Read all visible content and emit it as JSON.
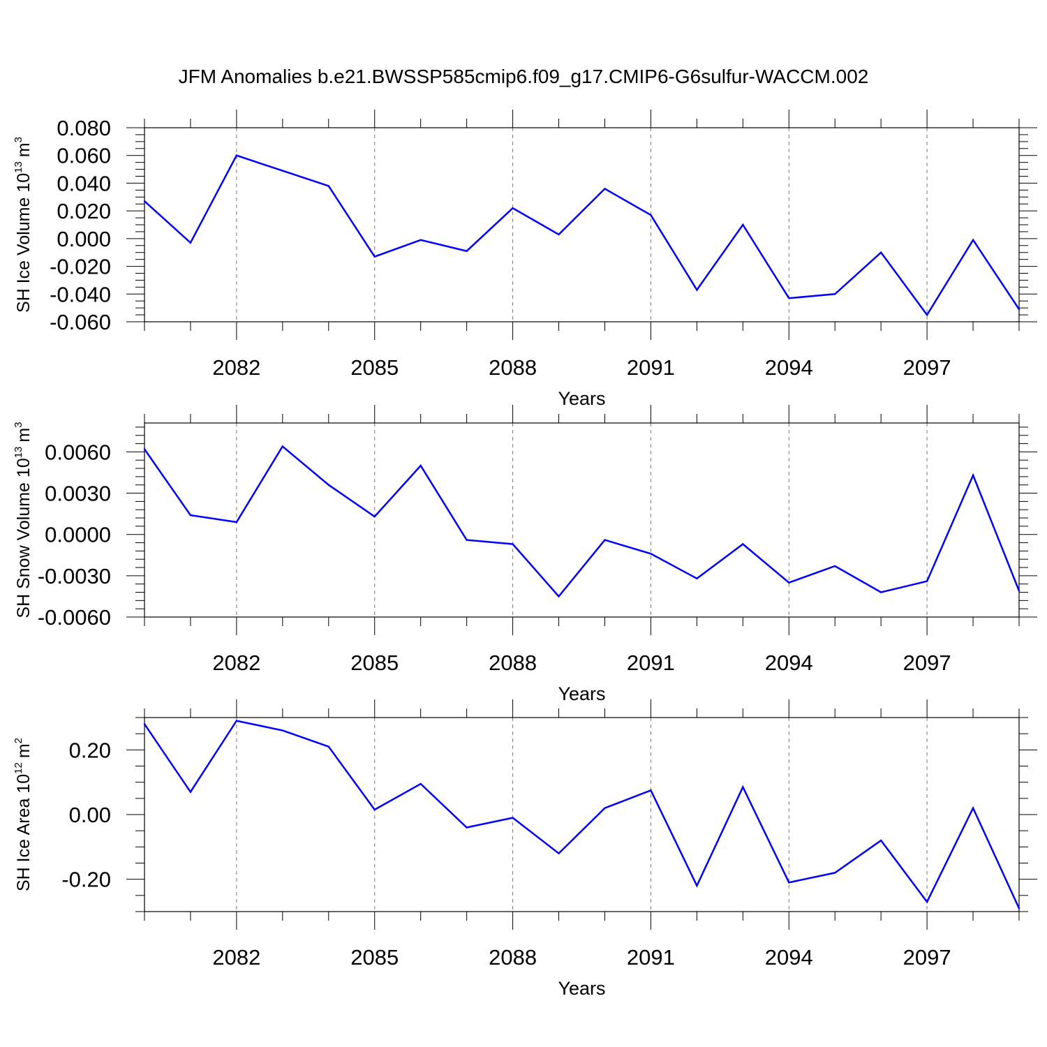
{
  "title": "JFM Anomalies b.e21.BWSSP585cmip6.f09_g17.CMIP6-G6sulfur-WACCM.002",
  "colors": {
    "line": "#0000ff",
    "axes": "#000000",
    "grid": "#777777"
  },
  "chart_data": [
    {
      "type": "line",
      "ylabel_text": "SH Ice Volume 10",
      "ylabel_exp": "13",
      "ylabel_unit": "m",
      "ylabel_unit_exp": "3",
      "xlabel": "Years",
      "xlim": [
        2080,
        2099
      ],
      "ylim": [
        -0.06,
        0.08
      ],
      "yticks": [
        -0.06,
        -0.04,
        -0.02,
        0.0,
        0.02,
        0.04,
        0.06,
        0.08
      ],
      "ytick_labels": [
        "-0.060",
        "-0.040",
        "-0.020",
        "0.000",
        "0.020",
        "0.040",
        "0.060",
        "0.080"
      ],
      "yminor_step": 0.005,
      "xticks": [
        2082,
        2085,
        2088,
        2091,
        2094,
        2097
      ],
      "xtick_labels": [
        "2082",
        "2085",
        "2088",
        "2091",
        "2094",
        "2097"
      ],
      "grid": "vertical dashed at major x ticks",
      "x": [
        2080,
        2081,
        2082,
        2083,
        2084,
        2085,
        2086,
        2087,
        2088,
        2089,
        2090,
        2091,
        2092,
        2093,
        2094,
        2095,
        2096,
        2097,
        2098,
        2099
      ],
      "values": [
        0.027,
        -0.003,
        0.06,
        0.049,
        0.038,
        -0.013,
        -0.001,
        -0.009,
        0.022,
        0.003,
        0.036,
        0.017,
        -0.037,
        0.01,
        -0.043,
        -0.04,
        -0.01,
        -0.055,
        -0.001,
        -0.051
      ]
    },
    {
      "type": "line",
      "ylabel_text": "SH Snow Volume 10",
      "ylabel_exp": "13",
      "ylabel_unit": "m",
      "ylabel_unit_exp": "3",
      "xlabel": "Years",
      "xlim": [
        2080,
        2099
      ],
      "ylim": [
        -0.006,
        0.0081
      ],
      "yticks": [
        -0.006,
        -0.003,
        0.0,
        0.003,
        0.006
      ],
      "ytick_labels": [
        "-0.0060",
        "-0.0030",
        "0.0000",
        "0.0030",
        "0.0060"
      ],
      "yminor_step": 0.0006,
      "xticks": [
        2082,
        2085,
        2088,
        2091,
        2094,
        2097
      ],
      "xtick_labels": [
        "2082",
        "2085",
        "2088",
        "2091",
        "2094",
        "2097"
      ],
      "grid": "vertical dashed at major x ticks",
      "x": [
        2080,
        2081,
        2082,
        2083,
        2084,
        2085,
        2086,
        2087,
        2088,
        2089,
        2090,
        2091,
        2092,
        2093,
        2094,
        2095,
        2096,
        2097,
        2098,
        2099
      ],
      "values": [
        0.0062,
        0.0014,
        0.0009,
        0.0064,
        0.0036,
        0.0013,
        0.005,
        -0.0004,
        -0.0007,
        -0.0045,
        -0.0004,
        -0.0014,
        -0.0032,
        -0.0007,
        -0.0035,
        -0.0023,
        -0.0042,
        -0.0034,
        0.0043,
        -0.0041
      ]
    },
    {
      "type": "line",
      "ylabel_text": "SH Ice Area 10",
      "ylabel_exp": "12",
      "ylabel_unit": "m",
      "ylabel_unit_exp": "2",
      "xlabel": "Years",
      "xlim": [
        2080,
        2099
      ],
      "ylim": [
        -0.3,
        0.3
      ],
      "yticks": [
        -0.2,
        0.0,
        0.2
      ],
      "ytick_labels": [
        "-0.20",
        "0.00",
        "0.20"
      ],
      "yminor_step": 0.05,
      "xticks": [
        2082,
        2085,
        2088,
        2091,
        2094,
        2097
      ],
      "xtick_labels": [
        "2082",
        "2085",
        "2088",
        "2091",
        "2094",
        "2097"
      ],
      "grid": "vertical dashed at major x ticks",
      "x": [
        2080,
        2081,
        2082,
        2083,
        2084,
        2085,
        2086,
        2087,
        2088,
        2089,
        2090,
        2091,
        2092,
        2093,
        2094,
        2095,
        2096,
        2097,
        2098,
        2099
      ],
      "values": [
        0.28,
        0.07,
        0.29,
        0.26,
        0.21,
        0.015,
        0.095,
        -0.04,
        -0.01,
        -0.12,
        0.02,
        0.075,
        -0.22,
        0.085,
        -0.21,
        -0.18,
        -0.08,
        -0.27,
        0.02,
        -0.29
      ]
    }
  ]
}
